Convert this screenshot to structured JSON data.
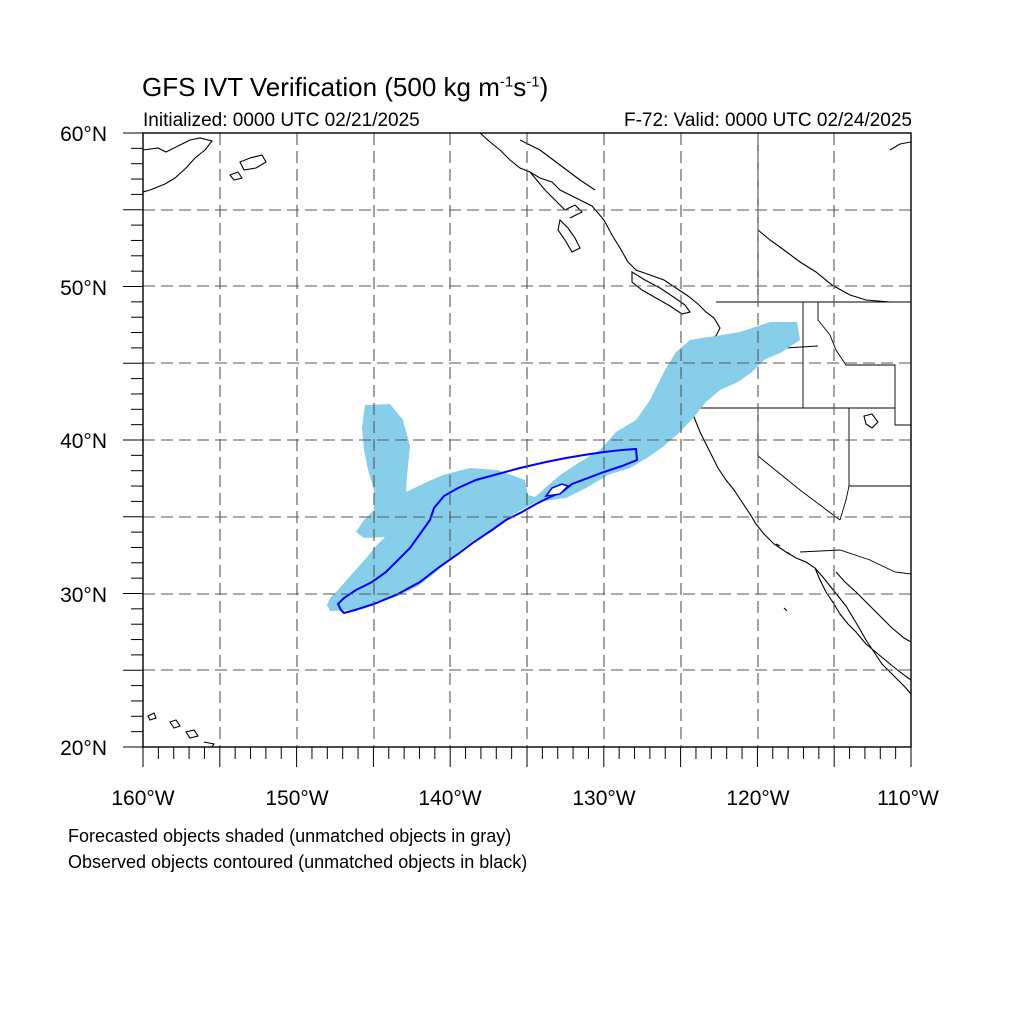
{
  "title": {
    "main": "GFS IVT Verification (500 kg m",
    "exp1": "-1",
    "mid": "s",
    "exp2": "-1",
    "end": ")"
  },
  "initialized": "Initialized: 0000 UTC 02/21/2025",
  "valid": "F-72: Valid: 0000 UTC 02/24/2025",
  "notes": [
    "Forecasted objects shaded (unmatched objects in gray)",
    "Observed objects contoured (unmatched objects in black)"
  ],
  "map": {
    "lon_range": [
      -160,
      -110
    ],
    "lat_range": [
      20,
      60
    ],
    "grid": true,
    "lat_labels": [
      "20°N",
      "30°N",
      "40°N",
      "50°N",
      "60°N"
    ],
    "lon_labels": [
      "160°W",
      "150°W",
      "140°W",
      "130°W",
      "120°W",
      "110°W"
    ],
    "colors": {
      "forecast_fill": "#87ceeb",
      "observed_contour": "#0000ff",
      "coast": "#000000",
      "grid": "#555555"
    }
  }
}
